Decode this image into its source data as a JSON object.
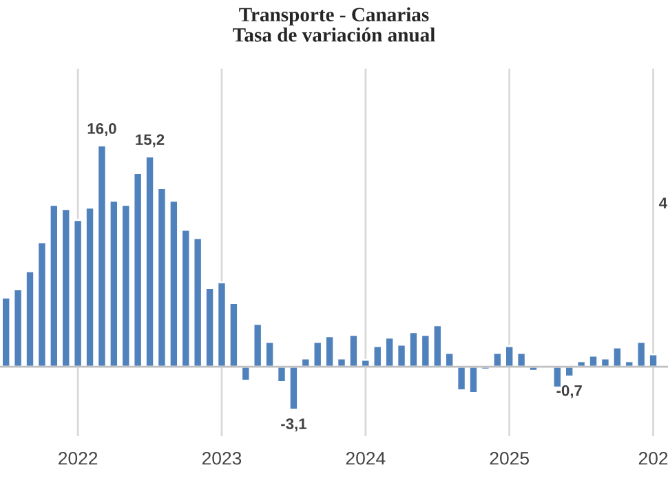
{
  "chart_data": {
    "type": "bar",
    "title": "Transporte - Canarias\nTasa de variación anual",
    "x": [
      "2021-07",
      "2021-08",
      "2021-09",
      "2021-10",
      "2021-11",
      "2021-12",
      "2022-01",
      "2022-02",
      "2022-03",
      "2022-04",
      "2022-05",
      "2022-06",
      "2022-07",
      "2022-08",
      "2022-09",
      "2022-10",
      "2022-11",
      "2022-12",
      "2023-01",
      "2023-02",
      "2023-03",
      "2023-04",
      "2023-05",
      "2023-06",
      "2023-07",
      "2023-08",
      "2023-09",
      "2023-10",
      "2023-11",
      "2023-12",
      "2024-01",
      "2024-02",
      "2024-03",
      "2024-04",
      "2024-05",
      "2024-06",
      "2024-07",
      "2024-08",
      "2024-09",
      "2024-10",
      "2024-11",
      "2024-12",
      "2025-01",
      "2025-02",
      "2025-03",
      "2025-04",
      "2025-05",
      "2025-06",
      "2025-07",
      "2025-08",
      "2025-09",
      "2025-10",
      "2025-11",
      "2025-12",
      "2026-01"
    ],
    "values": [
      5.0,
      5.6,
      6.9,
      9.0,
      11.7,
      11.4,
      10.6,
      11.5,
      16.0,
      12.0,
      11.7,
      14.0,
      15.2,
      12.9,
      12.0,
      9.9,
      9.3,
      5.7,
      6.1,
      4.6,
      -1.0,
      3.1,
      1.8,
      -1.1,
      -3.1,
      0.6,
      1.8,
      2.2,
      0.6,
      2.3,
      0.5,
      1.5,
      2.1,
      1.6,
      2.5,
      2.3,
      3.0,
      1.0,
      -1.7,
      -1.9,
      -0.2,
      1.0,
      1.5,
      1.0,
      -0.3,
      null,
      -1.5,
      -0.7,
      0.4,
      0.8,
      0.6,
      1.4,
      0.4,
      1.8,
      0.9
    ],
    "value_labels": [
      null,
      null,
      null,
      null,
      null,
      null,
      null,
      null,
      "16,0",
      null,
      null,
      null,
      "15,2",
      null,
      null,
      null,
      null,
      null,
      null,
      null,
      null,
      null,
      null,
      null,
      "-3,1",
      null,
      null,
      null,
      null,
      null,
      null,
      null,
      null,
      null,
      null,
      null,
      null,
      null,
      null,
      null,
      null,
      null,
      null,
      null,
      null,
      null,
      null,
      "-0,7",
      null,
      null,
      null,
      null,
      null,
      null,
      null
    ],
    "color": "#4f81bd",
    "xlim": [
      "2021-06-16",
      "2026-02-08"
    ],
    "xticks": [
      {
        "value": "2022",
        "label": "2022"
      },
      {
        "value": "2023",
        "label": "2023"
      },
      {
        "value": "2024",
        "label": "2024"
      },
      {
        "value": "2025",
        "label": "2025"
      },
      {
        "value": "2026",
        "label": "202"
      }
    ],
    "tick_labels": "x",
    "grid": "x",
    "annotations": [
      "4"
    ]
  }
}
